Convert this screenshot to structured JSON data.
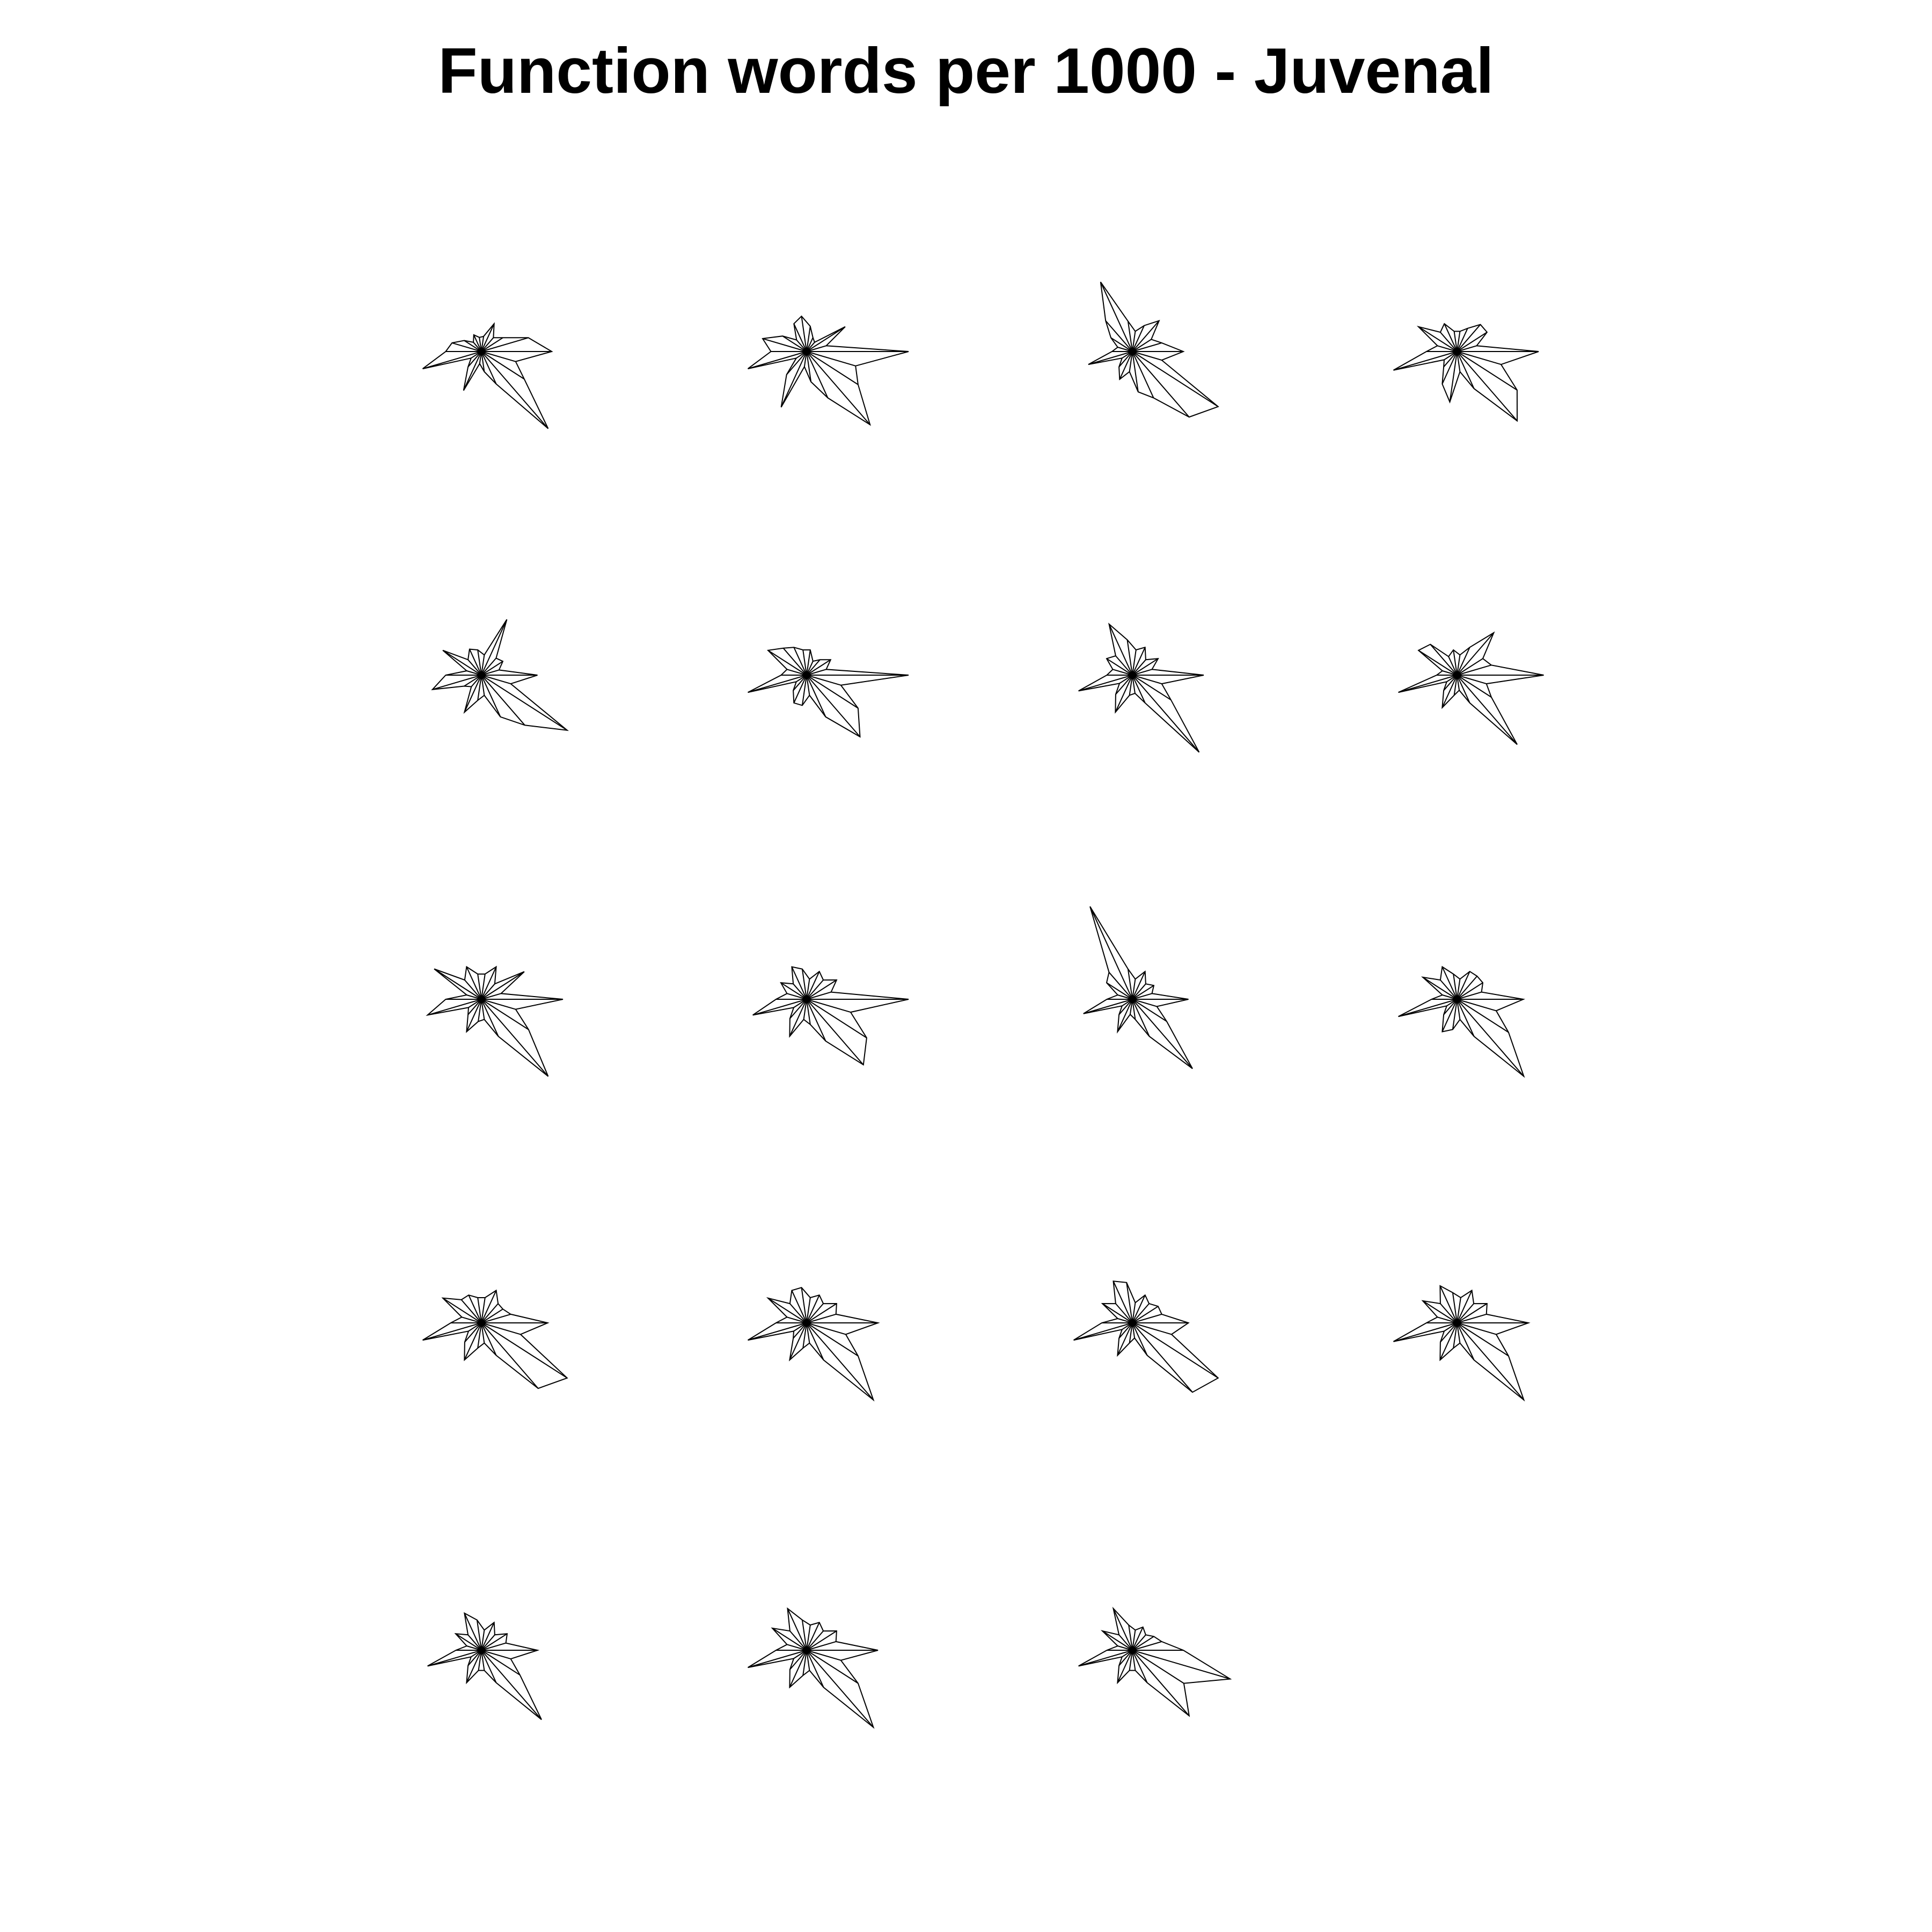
{
  "chart_data": {
    "type": "star",
    "title": "Function words per 1000 - Juvenal",
    "layout": {
      "rows": 5,
      "cols": 4
    },
    "line_color": "#000000",
    "background": "#ffffff",
    "labels_shown": false,
    "variables_per_star": 22,
    "stars": [
      [
        0.69,
        0.48,
        0.25,
        0.18,
        0.3,
        0.15,
        0.14,
        0.18,
        0.12,
        0.2,
        0.3,
        0.35,
        0.6,
        0.12,
        0.2,
        0.42,
        0.12,
        0.2,
        0.35,
        1.0,
        0.5,
        0.35
      ],
      [
        1.0,
        0.2,
        0.45,
        0.12,
        0.15,
        0.25,
        0.35,
        0.3,
        0.15,
        0.28,
        0.45,
        0.35,
        0.6,
        0.12,
        0.3,
        0.6,
        0.15,
        0.3,
        0.5,
        0.95,
        0.6,
        0.5
      ],
      [
        0.5,
        0.3,
        0.22,
        0.4,
        0.28,
        0.2,
        0.3,
        0.75,
        0.4,
        0.25,
        0.15,
        0.2,
        0.45,
        0.12,
        0.2,
        0.3,
        0.2,
        0.4,
        0.5,
        0.85,
        1.0,
        0.3
      ],
      [
        0.8,
        0.2,
        0.35,
        0.35,
        0.25,
        0.2,
        0.2,
        0.3,
        0.25,
        0.45,
        0.2,
        0.3,
        0.65,
        0.15,
        0.2,
        0.35,
        0.5,
        0.2,
        0.4,
        0.9,
        0.7,
        0.45
      ],
      [
        0.55,
        0.18,
        0.25,
        0.22,
        0.6,
        0.2,
        0.25,
        0.28,
        0.2,
        0.45,
        0.15,
        0.35,
        0.5,
        0.2,
        0.15,
        0.4,
        0.25,
        0.2,
        0.45,
        0.65,
        1.0,
        0.3
      ],
      [
        1.0,
        0.2,
        0.28,
        0.2,
        0.15,
        0.25,
        0.25,
        0.3,
        0.35,
        0.45,
        0.2,
        0.25,
        0.6,
        0.12,
        0.2,
        0.3,
        0.3,
        0.2,
        0.45,
        0.8,
        0.6,
        0.35
      ],
      [
        0.7,
        0.2,
        0.3,
        0.2,
        0.3,
        0.25,
        0.35,
        0.55,
        0.25,
        0.3,
        0.2,
        0.25,
        0.55,
        0.15,
        0.25,
        0.4,
        0.2,
        0.18,
        0.3,
        1.0,
        0.45,
        0.3
      ],
      [
        0.85,
        0.35,
        0.3,
        0.55,
        0.3,
        0.2,
        0.25,
        0.2,
        0.4,
        0.45,
        0.15,
        0.2,
        0.6,
        0.12,
        0.2,
        0.35,
        0.2,
        0.15,
        0.3,
        0.9,
        0.4,
        0.3
      ],
      [
        0.8,
        0.2,
        0.5,
        0.2,
        0.35,
        0.25,
        0.25,
        0.35,
        0.25,
        0.55,
        0.15,
        0.35,
        0.55,
        0.15,
        0.2,
        0.35,
        0.22,
        0.2,
        0.4,
        1.0,
        0.55,
        0.35
      ],
      [
        1.0,
        0.25,
        0.35,
        0.25,
        0.3,
        0.2,
        0.3,
        0.35,
        0.2,
        0.3,
        0.2,
        0.3,
        0.55,
        0.15,
        0.25,
        0.4,
        0.2,
        0.25,
        0.45,
        0.85,
        0.7,
        0.45
      ],
      [
        0.55,
        0.2,
        0.25,
        0.2,
        0.3,
        0.2,
        0.3,
        1.0,
        0.35,
        0.3,
        0.15,
        0.25,
        0.5,
        0.12,
        0.2,
        0.35,
        0.15,
        0.2,
        0.4,
        0.9,
        0.4,
        0.25
      ],
      [
        0.65,
        0.25,
        0.3,
        0.3,
        0.3,
        0.2,
        0.25,
        0.35,
        0.25,
        0.4,
        0.15,
        0.25,
        0.6,
        0.12,
        0.2,
        0.35,
        0.3,
        0.2,
        0.4,
        1.0,
        0.6,
        0.4
      ],
      [
        0.65,
        0.3,
        0.25,
        0.25,
        0.35,
        0.25,
        0.25,
        0.3,
        0.3,
        0.45,
        0.2,
        0.3,
        0.6,
        0.15,
        0.25,
        0.4,
        0.25,
        0.2,
        0.35,
        0.85,
        1.0,
        0.4
      ],
      [
        0.7,
        0.3,
        0.35,
        0.25,
        0.3,
        0.25,
        0.35,
        0.35,
        0.25,
        0.45,
        0.2,
        0.3,
        0.6,
        0.15,
        0.2,
        0.4,
        0.25,
        0.2,
        0.4,
        1.0,
        0.6,
        0.4
      ],
      [
        0.55,
        0.3,
        0.3,
        0.25,
        0.3,
        0.2,
        0.4,
        0.45,
        0.25,
        0.35,
        0.15,
        0.3,
        0.6,
        0.12,
        0.2,
        0.35,
        0.2,
        0.15,
        0.35,
        0.9,
        1.0,
        0.4
      ],
      [
        0.7,
        0.3,
        0.35,
        0.25,
        0.35,
        0.25,
        0.3,
        0.4,
        0.25,
        0.4,
        0.2,
        0.3,
        0.65,
        0.15,
        0.25,
        0.4,
        0.25,
        0.2,
        0.4,
        1.0,
        0.6,
        0.4
      ],
      [
        0.55,
        0.25,
        0.3,
        0.2,
        0.3,
        0.2,
        0.3,
        0.4,
        0.2,
        0.3,
        0.15,
        0.25,
        0.55,
        0.12,
        0.2,
        0.35,
        0.2,
        0.2,
        0.35,
        0.9,
        0.45,
        0.3
      ],
      [
        0.7,
        0.3,
        0.35,
        0.25,
        0.3,
        0.25,
        0.3,
        0.45,
        0.25,
        0.4,
        0.2,
        0.3,
        0.6,
        0.15,
        0.25,
        0.4,
        0.25,
        0.2,
        0.4,
        1.0,
        0.6,
        0.35
      ],
      [
        0.5,
        0.3,
        0.25,
        0.2,
        0.25,
        0.2,
        0.25,
        0.45,
        0.2,
        0.35,
        0.15,
        0.25,
        0.55,
        0.12,
        0.2,
        0.35,
        0.2,
        0.2,
        0.35,
        0.85,
        0.6,
        1.0
      ]
    ]
  }
}
